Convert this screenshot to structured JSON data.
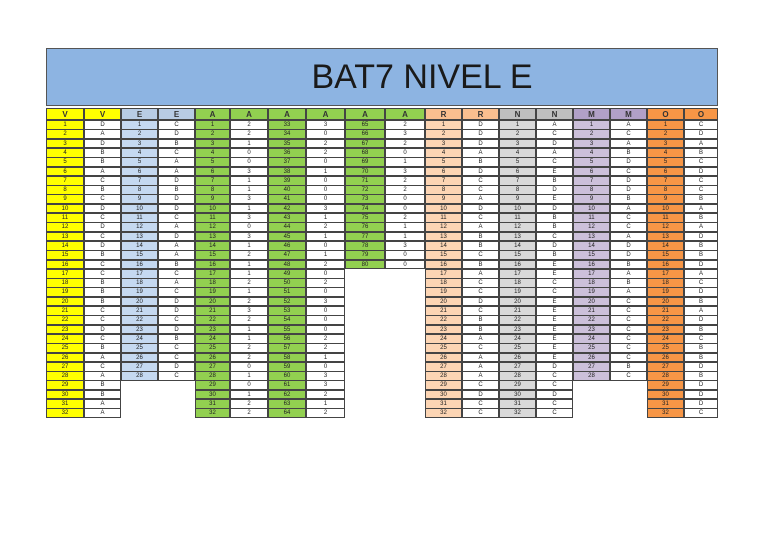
{
  "title": "BAT7 NIVEL E",
  "table": {
    "header": [
      "V",
      "V",
      "E",
      "E",
      "A",
      "A",
      "A",
      "A",
      "A",
      "A",
      "R",
      "R",
      "N",
      "N",
      "M",
      "M",
      "O",
      "O"
    ],
    "rows": [
      [
        1,
        "D",
        1,
        "C",
        1,
        2,
        33,
        3,
        65,
        2,
        1,
        "D",
        1,
        "A",
        1,
        "A",
        1,
        "C"
      ],
      [
        2,
        "A",
        2,
        "D",
        2,
        2,
        34,
        0,
        66,
        3,
        2,
        "D",
        2,
        "C",
        2,
        "C",
        2,
        "D"
      ],
      [
        3,
        "D",
        3,
        "B",
        3,
        1,
        35,
        2,
        67,
        2,
        3,
        "D",
        3,
        "D",
        3,
        "A",
        3,
        "A"
      ],
      [
        4,
        "B",
        4,
        "C",
        4,
        0,
        36,
        2,
        68,
        0,
        4,
        "A",
        4,
        "A",
        4,
        "B",
        4,
        "B"
      ],
      [
        5,
        "B",
        5,
        "A",
        5,
        0,
        37,
        0,
        69,
        1,
        5,
        "B",
        5,
        "C",
        5,
        "D",
        5,
        "C"
      ],
      [
        6,
        "A",
        6,
        "A",
        6,
        3,
        38,
        1,
        70,
        3,
        6,
        "D",
        6,
        "E",
        6,
        "C",
        6,
        "D"
      ],
      [
        7,
        "C",
        7,
        "D",
        7,
        1,
        39,
        0,
        71,
        2,
        7,
        "C",
        7,
        "B",
        7,
        "D",
        7,
        "C"
      ],
      [
        8,
        "B",
        8,
        "B",
        8,
        1,
        40,
        0,
        72,
        2,
        8,
        "C",
        8,
        "D",
        8,
        "D",
        8,
        "C"
      ],
      [
        9,
        "C",
        9,
        "D",
        9,
        3,
        41,
        0,
        73,
        0,
        9,
        "A",
        9,
        "E",
        9,
        "B",
        9,
        "B"
      ],
      [
        10,
        "D",
        10,
        "D",
        10,
        1,
        42,
        3,
        74,
        0,
        10,
        "D",
        10,
        "D",
        10,
        "A",
        10,
        "A"
      ],
      [
        11,
        "C",
        11,
        "C",
        11,
        3,
        43,
        1,
        75,
        2,
        11,
        "C",
        11,
        "B",
        11,
        "C",
        11,
        "B"
      ],
      [
        12,
        "D",
        12,
        "A",
        12,
        0,
        44,
        2,
        76,
        1,
        12,
        "A",
        12,
        "B",
        12,
        "C",
        12,
        "A"
      ],
      [
        13,
        "C",
        13,
        "D",
        13,
        3,
        45,
        1,
        77,
        1,
        13,
        "B",
        13,
        "C",
        13,
        "A",
        13,
        "D"
      ],
      [
        14,
        "D",
        14,
        "A",
        14,
        1,
        46,
        0,
        78,
        3,
        14,
        "B",
        14,
        "D",
        14,
        "D",
        14,
        "B"
      ],
      [
        15,
        "B",
        15,
        "A",
        15,
        2,
        47,
        1,
        79,
        0,
        15,
        "C",
        15,
        "B",
        15,
        "D",
        15,
        "B"
      ],
      [
        16,
        "C",
        16,
        "B",
        16,
        1,
        48,
        2,
        80,
        0,
        16,
        "B",
        16,
        "E",
        16,
        "B",
        16,
        "D"
      ],
      [
        17,
        "C",
        17,
        "C",
        17,
        1,
        49,
        0,
        null,
        null,
        17,
        "A",
        17,
        "E",
        17,
        "A",
        17,
        "A"
      ],
      [
        18,
        "B",
        18,
        "A",
        18,
        2,
        50,
        2,
        null,
        null,
        18,
        "C",
        18,
        "C",
        18,
        "B",
        18,
        "C"
      ],
      [
        19,
        "B",
        19,
        "C",
        19,
        1,
        51,
        0,
        null,
        null,
        19,
        "C",
        19,
        "C",
        19,
        "A",
        19,
        "D"
      ],
      [
        20,
        "B",
        20,
        "D",
        20,
        2,
        52,
        3,
        null,
        null,
        20,
        "D",
        20,
        "E",
        20,
        "C",
        20,
        "B"
      ],
      [
        21,
        "C",
        21,
        "D",
        21,
        3,
        53,
        0,
        null,
        null,
        21,
        "C",
        21,
        "E",
        21,
        "C",
        21,
        "A"
      ],
      [
        22,
        "C",
        22,
        "C",
        22,
        2,
        54,
        0,
        null,
        null,
        22,
        "B",
        22,
        "E",
        22,
        "C",
        22,
        "D"
      ],
      [
        23,
        "D",
        23,
        "D",
        23,
        1,
        55,
        0,
        null,
        null,
        23,
        "B",
        23,
        "E",
        23,
        "C",
        23,
        "B"
      ],
      [
        24,
        "C",
        24,
        "B",
        24,
        1,
        56,
        2,
        null,
        null,
        24,
        "A",
        24,
        "E",
        24,
        "C",
        24,
        "C"
      ],
      [
        25,
        "B",
        25,
        "C",
        25,
        2,
        57,
        2,
        null,
        null,
        25,
        "C",
        25,
        "E",
        25,
        "C",
        25,
        "B"
      ],
      [
        26,
        "A",
        26,
        "C",
        26,
        2,
        58,
        1,
        null,
        null,
        26,
        "A",
        26,
        "E",
        26,
        "C",
        26,
        "B"
      ],
      [
        27,
        "C",
        27,
        "D",
        27,
        0,
        59,
        0,
        null,
        null,
        27,
        "A",
        27,
        "D",
        27,
        "B",
        27,
        "D"
      ],
      [
        28,
        "A",
        28,
        "C",
        28,
        1,
        60,
        3,
        null,
        null,
        28,
        "A",
        28,
        "C",
        28,
        "C",
        28,
        "B"
      ],
      [
        29,
        "B",
        null,
        null,
        29,
        0,
        61,
        3,
        null,
        null,
        29,
        "C",
        29,
        "C",
        null,
        null,
        29,
        "D"
      ],
      [
        30,
        "B",
        null,
        null,
        30,
        1,
        62,
        2,
        null,
        null,
        30,
        "D",
        30,
        "D",
        null,
        null,
        30,
        "D"
      ],
      [
        31,
        "A",
        null,
        null,
        31,
        2,
        63,
        1,
        null,
        null,
        31,
        "C",
        31,
        "C",
        null,
        null,
        31,
        "D"
      ],
      [
        32,
        "A",
        null,
        null,
        32,
        2,
        64,
        2,
        null,
        null,
        32,
        "C",
        32,
        "C",
        null,
        null,
        32,
        "C"
      ]
    ]
  }
}
